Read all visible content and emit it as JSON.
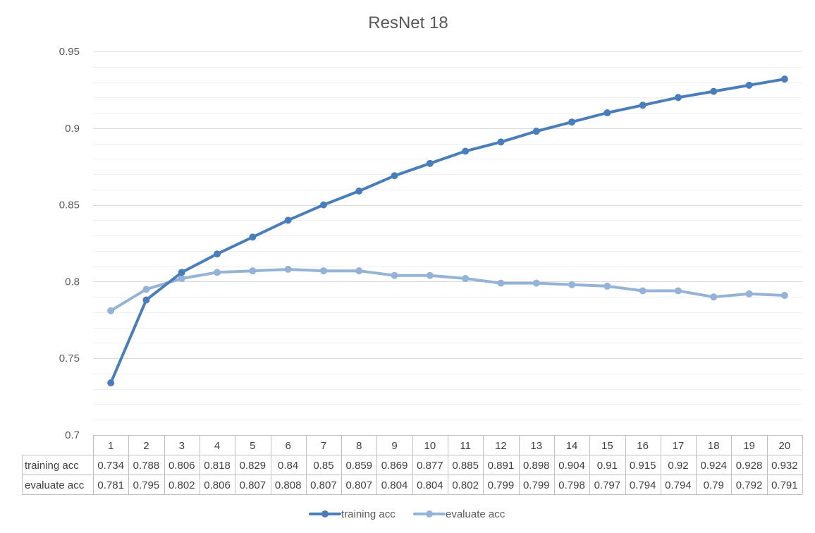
{
  "chart_data": {
    "type": "line",
    "title": "ResNet 18",
    "xlabel": "",
    "ylabel": "",
    "categories": [
      "1",
      "2",
      "3",
      "4",
      "5",
      "6",
      "7",
      "8",
      "9",
      "10",
      "11",
      "12",
      "13",
      "14",
      "15",
      "16",
      "17",
      "18",
      "19",
      "20"
    ],
    "series": [
      {
        "name": "training acc",
        "color": "#4A7EBB",
        "values": [
          0.734,
          0.788,
          0.806,
          0.818,
          0.829,
          0.84,
          0.85,
          0.859,
          0.869,
          0.877,
          0.885,
          0.891,
          0.898,
          0.904,
          0.91,
          0.915,
          0.92,
          0.924,
          0.928,
          0.932
        ]
      },
      {
        "name": "evaluate acc",
        "color": "#95B3D7",
        "values": [
          0.781,
          0.795,
          0.802,
          0.806,
          0.807,
          0.808,
          0.807,
          0.807,
          0.804,
          0.804,
          0.802,
          0.799,
          0.799,
          0.798,
          0.797,
          0.794,
          0.794,
          0.79,
          0.792,
          0.791
        ]
      }
    ],
    "ylim": [
      0.7,
      0.95
    ],
    "y_ticks": [
      "0.95",
      "0.9",
      "0.85",
      "0.8",
      "0.75",
      "0.7"
    ],
    "grid": true,
    "data_table": true,
    "legend_position": "bottom"
  }
}
